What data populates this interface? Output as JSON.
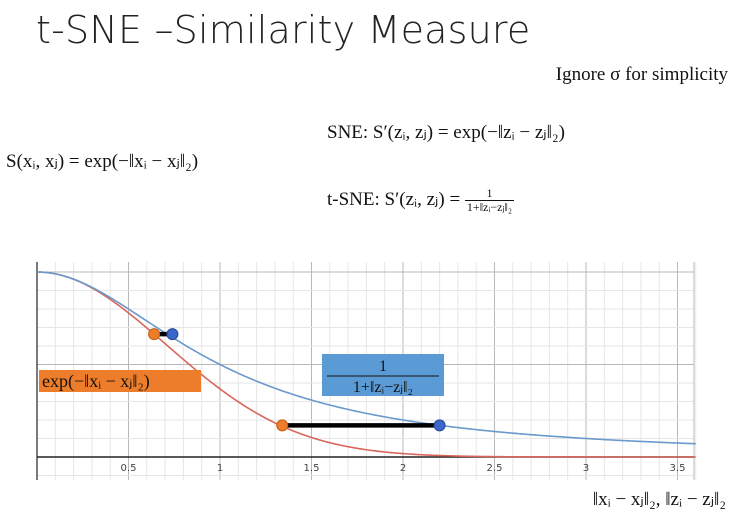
{
  "header": {
    "title": "t-SNE –Similarity Measure",
    "note": "Ignore σ for simplicity"
  },
  "formulas": {
    "s": "S(xᵢ, xⱼ) = exp(−‖xᵢ − xⱼ‖₂)",
    "sne": "SNE: S′(zᵢ, zⱼ) = exp(−‖zᵢ − zⱼ‖₂)",
    "tsne_prefix": "t-SNE: S′(zᵢ, zⱼ) =",
    "tsne_num": "1",
    "tsne_den": "1+‖zᵢ−zⱼ‖₂"
  },
  "chart_data": {
    "type": "line",
    "xlabel": "‖xᵢ − xⱼ‖₂, ‖zᵢ − zⱼ‖₂",
    "xlim": [
      0,
      3.6
    ],
    "ylim": [
      0,
      1
    ],
    "grid": true,
    "x_ticks": [
      "0.5",
      "1",
      "1.5",
      "2",
      "2.5",
      "3",
      "3.5"
    ],
    "x_tick_values": [
      0.5,
      1,
      1.5,
      2,
      2.5,
      3,
      3.5
    ],
    "series": [
      {
        "label": "exp(−‖xᵢ − xⱼ‖₂)",
        "function": "exp(-x^2)",
        "color": "#d9665b",
        "label_bg": "#ee7d2b"
      },
      {
        "label_num": "1",
        "label_den": "1+‖zᵢ−zⱼ‖₂",
        "function": "1/(1+x^2)",
        "color": "#6a99cc",
        "label_bg": "#5b9bd5"
      }
    ],
    "matches": [
      {
        "x_orange": 0.64,
        "x_blue": 0.74,
        "y": 0.664
      },
      {
        "x_orange": 1.34,
        "x_blue": 2.2,
        "y": 0.171
      }
    ],
    "point_colors": {
      "orange": "#ee7d2b",
      "blue": "#3b67c8"
    }
  }
}
